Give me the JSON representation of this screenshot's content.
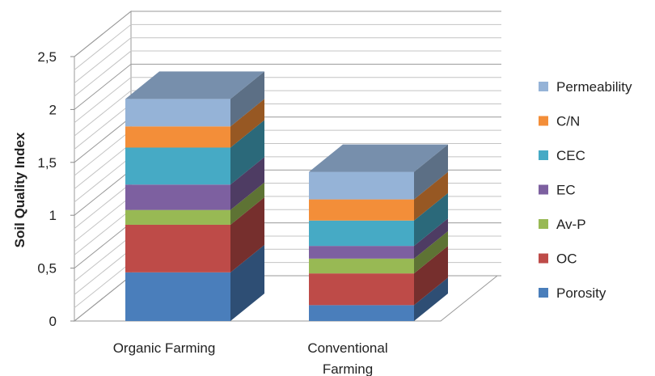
{
  "chart_data": {
    "type": "bar",
    "subtype": "stacked-3d",
    "title": "",
    "xlabel": "",
    "ylabel": "Soil Quality Index",
    "ylim": [
      0,
      2.5
    ],
    "y_ticks": [
      "0",
      "0,5",
      "1",
      "1,5",
      "2",
      "2,5"
    ],
    "grid": true,
    "legend_position": "right",
    "categories": [
      "Organic Farming",
      "Conventional Farming"
    ],
    "series": [
      {
        "name": "Porosity",
        "color": "#4a7ebb",
        "values": [
          0.46,
          0.15
        ]
      },
      {
        "name": "OC",
        "color": "#be4b48",
        "values": [
          0.45,
          0.3
        ]
      },
      {
        "name": "Av-P",
        "color": "#98b954",
        "values": [
          0.14,
          0.14
        ]
      },
      {
        "name": "EC",
        "color": "#7d60a0",
        "values": [
          0.24,
          0.12
        ]
      },
      {
        "name": "CEC",
        "color": "#46aac5",
        "values": [
          0.35,
          0.24
        ]
      },
      {
        "name": "C/N",
        "color": "#f38e39",
        "values": [
          0.2,
          0.2
        ]
      },
      {
        "name": "Permeability",
        "color": "#95b3d7",
        "values": [
          0.26,
          0.26
        ]
      }
    ]
  }
}
